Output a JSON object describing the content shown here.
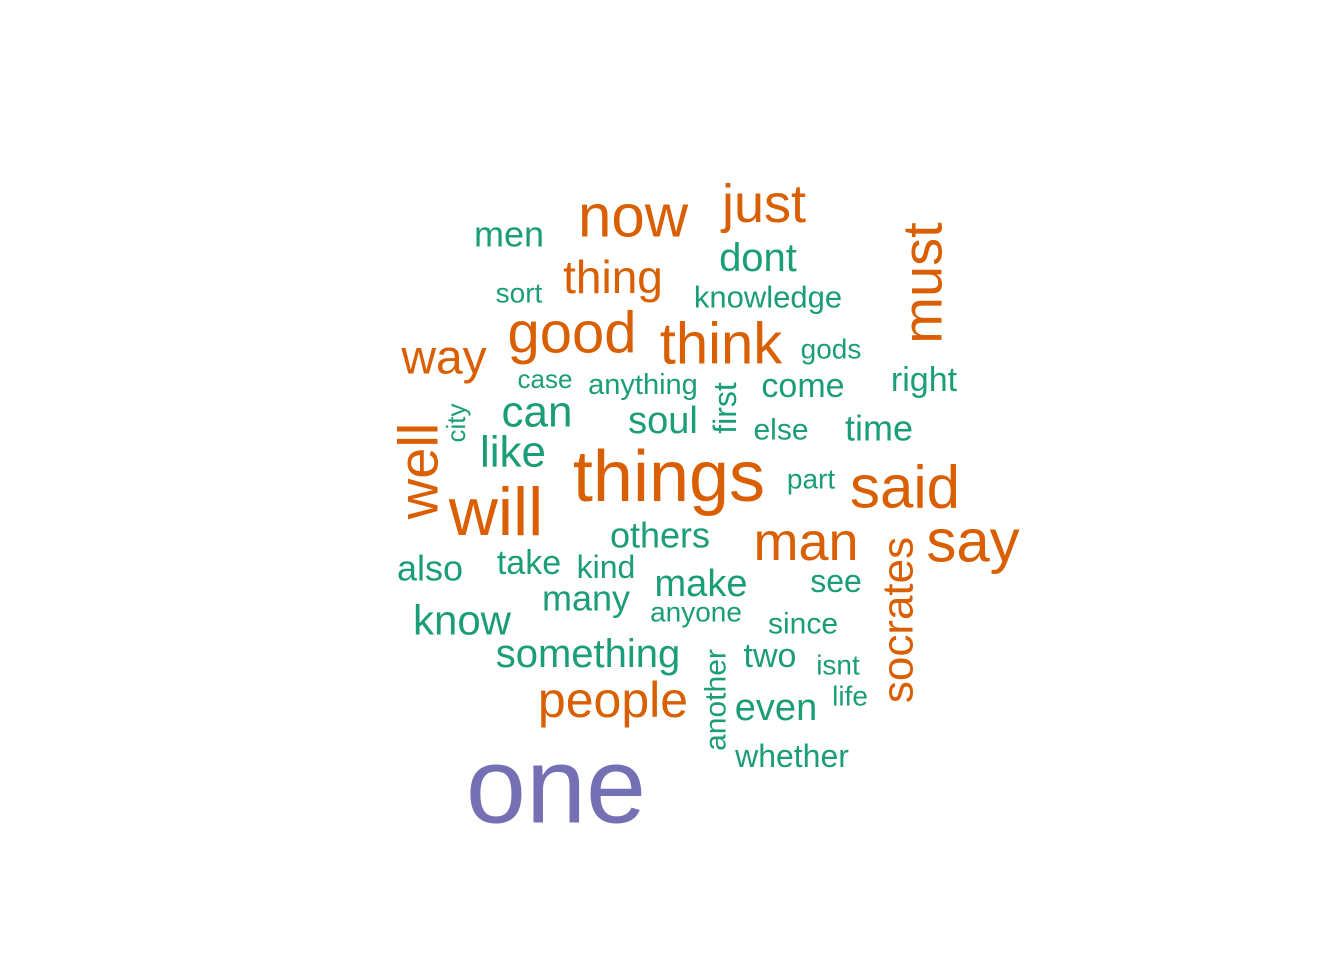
{
  "chart_data": {
    "type": "wordcloud",
    "colors": {
      "high": "#7570b3",
      "mid": "#d95f02",
      "low": "#1b9e77"
    },
    "words": [
      {
        "text": "one",
        "tier": "high",
        "rotated": false
      },
      {
        "text": "things",
        "tier": "mid",
        "rotated": false
      },
      {
        "text": "will",
        "tier": "mid",
        "rotated": false
      },
      {
        "text": "now",
        "tier": "mid",
        "rotated": false
      },
      {
        "text": "say",
        "tier": "mid",
        "rotated": false
      },
      {
        "text": "said",
        "tier": "mid",
        "rotated": false
      },
      {
        "text": "good",
        "tier": "mid",
        "rotated": false
      },
      {
        "text": "think",
        "tier": "mid",
        "rotated": false
      },
      {
        "text": "man",
        "tier": "mid",
        "rotated": false
      },
      {
        "text": "well",
        "tier": "mid",
        "rotated": true
      },
      {
        "text": "must",
        "tier": "mid",
        "rotated": true
      },
      {
        "text": "just",
        "tier": "mid",
        "rotated": false
      },
      {
        "text": "way",
        "tier": "mid",
        "rotated": false
      },
      {
        "text": "people",
        "tier": "mid",
        "rotated": false
      },
      {
        "text": "socrates",
        "tier": "mid",
        "rotated": true
      },
      {
        "text": "thing",
        "tier": "mid",
        "rotated": false
      },
      {
        "text": "like",
        "tier": "low",
        "rotated": false
      },
      {
        "text": "can",
        "tier": "low",
        "rotated": false
      },
      {
        "text": "know",
        "tier": "low",
        "rotated": false
      },
      {
        "text": "something",
        "tier": "low",
        "rotated": false
      },
      {
        "text": "make",
        "tier": "low",
        "rotated": false
      },
      {
        "text": "dont",
        "tier": "low",
        "rotated": false
      },
      {
        "text": "soul",
        "tier": "low",
        "rotated": false
      },
      {
        "text": "even",
        "tier": "low",
        "rotated": false
      },
      {
        "text": "men",
        "tier": "low",
        "rotated": false
      },
      {
        "text": "others",
        "tier": "low",
        "rotated": false
      },
      {
        "text": "time",
        "tier": "low",
        "rotated": false
      },
      {
        "text": "many",
        "tier": "low",
        "rotated": false
      },
      {
        "text": "come",
        "tier": "low",
        "rotated": false
      },
      {
        "text": "right",
        "tier": "low",
        "rotated": false
      },
      {
        "text": "also",
        "tier": "low",
        "rotated": false
      },
      {
        "text": "two",
        "tier": "low",
        "rotated": false
      },
      {
        "text": "knowledge",
        "tier": "low",
        "rotated": false
      },
      {
        "text": "whether",
        "tier": "low",
        "rotated": false
      },
      {
        "text": "take",
        "tier": "low",
        "rotated": false
      },
      {
        "text": "another",
        "tier": "low",
        "rotated": true
      },
      {
        "text": "kind",
        "tier": "low",
        "rotated": false
      },
      {
        "text": "see",
        "tier": "low",
        "rotated": false
      },
      {
        "text": "first",
        "tier": "low",
        "rotated": true
      },
      {
        "text": "anything",
        "tier": "low",
        "rotated": false
      },
      {
        "text": "else",
        "tier": "low",
        "rotated": false
      },
      {
        "text": "since",
        "tier": "low",
        "rotated": false
      },
      {
        "text": "anyone",
        "tier": "low",
        "rotated": false
      },
      {
        "text": "gods",
        "tier": "low",
        "rotated": false
      },
      {
        "text": "sort",
        "tier": "low",
        "rotated": false
      },
      {
        "text": "case",
        "tier": "low",
        "rotated": false
      },
      {
        "text": "part",
        "tier": "low",
        "rotated": false
      },
      {
        "text": "isnt",
        "tier": "low",
        "rotated": false
      },
      {
        "text": "city",
        "tier": "low",
        "rotated": true
      },
      {
        "text": "life",
        "tier": "low",
        "rotated": false
      }
    ]
  }
}
